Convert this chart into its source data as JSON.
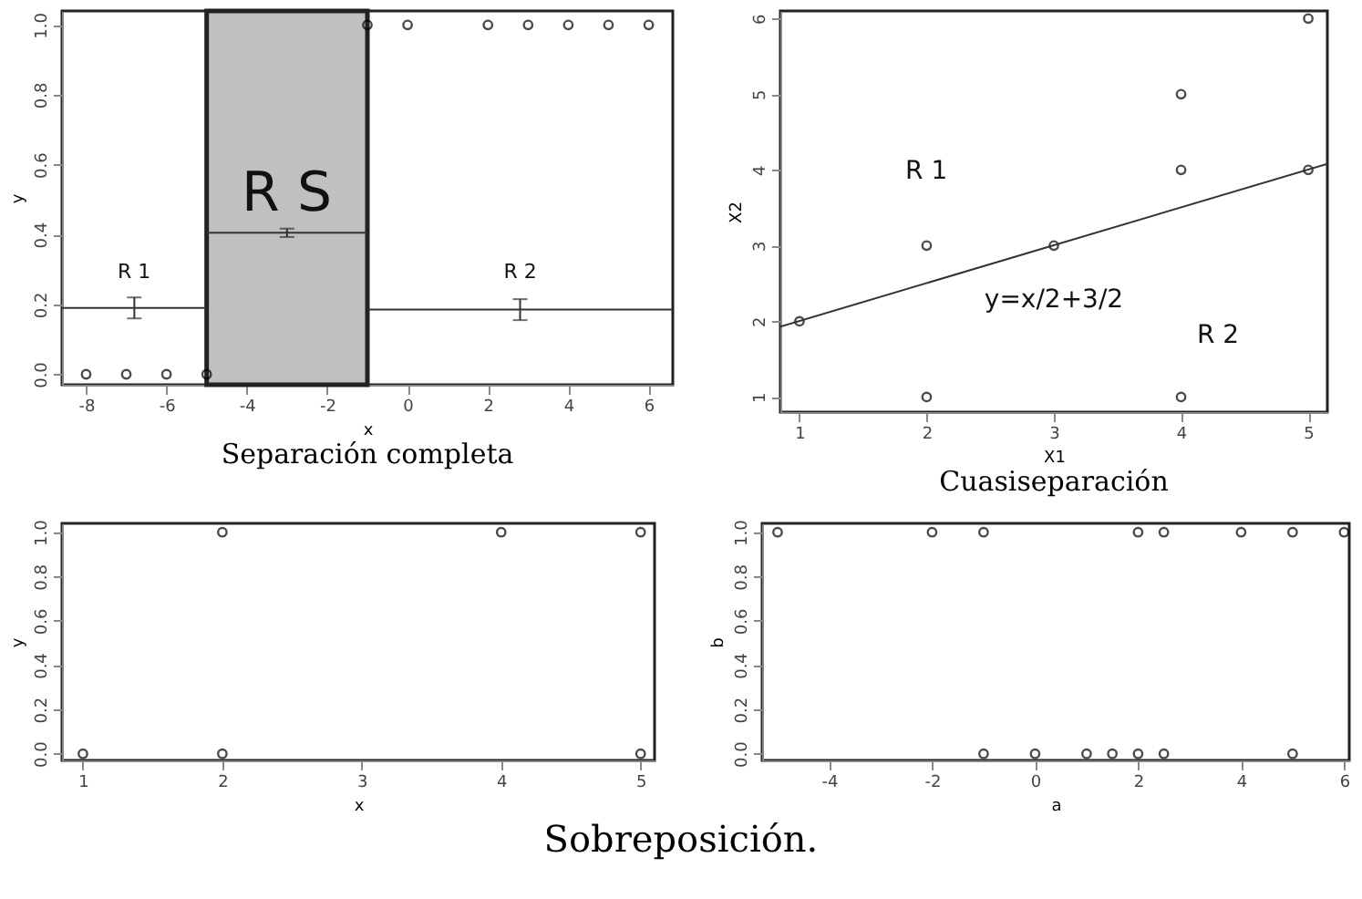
{
  "chart_data": [
    {
      "type": "scatter",
      "title": "Separación completa",
      "xlabel": "x",
      "ylabel": "y",
      "xlim": [
        -8.6,
        6.6
      ],
      "ylim": [
        -0.03,
        1.04
      ],
      "xticks": [
        -8,
        -6,
        -4,
        -2,
        0,
        2,
        4,
        6
      ],
      "yticks": [
        {
          "value": 0,
          "label": "0.0"
        },
        {
          "value": 0.2,
          "label": "0.2"
        },
        {
          "value": 0.4,
          "label": "0.4"
        },
        {
          "value": 0.6,
          "label": "0.6"
        },
        {
          "value": 0.8,
          "label": "0.8"
        },
        {
          "value": 1,
          "label": "1.0"
        }
      ],
      "bands": [
        {
          "axis": "x",
          "from": -5,
          "to": -1,
          "color": "#c0c0c0"
        }
      ],
      "series": [
        {
          "marker": "circle",
          "color": "#000000",
          "x": [
            -8,
            -7,
            -6,
            -5,
            -1,
            0,
            2,
            3,
            4,
            5,
            6
          ],
          "values": [
            0,
            0,
            0,
            0,
            1,
            1,
            1,
            1,
            1,
            1,
            1
          ]
        },
        {
          "type": "line",
          "marker": "none",
          "color": "#333333",
          "x": [
            -8.6,
            -6.8,
            -5
          ],
          "values": [
            0.19,
            0.19,
            0.19
          ],
          "errors": [
            null,
            0.03,
            null
          ]
        },
        {
          "type": "line",
          "marker": "none",
          "color": "#333333",
          "x": [
            -5,
            -3,
            -1
          ],
          "values": [
            0.405,
            0.405,
            0.405
          ],
          "errors": [
            null,
            0.012,
            null
          ]
        },
        {
          "type": "line",
          "marker": "none",
          "color": "#333333",
          "x": [
            -1,
            2.8,
            6.6
          ],
          "values": [
            0.185,
            0.185,
            0.185
          ],
          "errors": [
            null,
            0.03,
            null
          ]
        }
      ],
      "annotations": [
        "R 1",
        "R S",
        "R 2"
      ]
    },
    {
      "type": "scatter",
      "title": "Cuasiseparación",
      "xlabel": "X1",
      "ylabel": "X2",
      "xlim": [
        0.85,
        5.15
      ],
      "ylim": [
        0.8,
        6.1
      ],
      "xticks": [
        1,
        2,
        3,
        4,
        5
      ],
      "yticks": [
        1,
        2,
        3,
        4,
        5,
        6
      ],
      "series": [
        {
          "marker": "circle",
          "color": "#000000",
          "x": [
            1,
            2,
            2,
            3,
            4,
            4,
            4,
            5,
            5
          ],
          "values": [
            2,
            1,
            3,
            3,
            1,
            4,
            5,
            4,
            6
          ]
        },
        {
          "type": "line",
          "marker": "none",
          "color": "#333333",
          "x": [
            0.85,
            5.15
          ],
          "values": [
            1.93,
            4.08
          ]
        }
      ],
      "annotations": [
        "R 1",
        "y=x/2+3/2",
        "R 2"
      ]
    },
    {
      "type": "scatter",
      "xlabel": "x",
      "ylabel": "y",
      "xlim": [
        0.85,
        5.1
      ],
      "ylim": [
        -0.03,
        1.04
      ],
      "xticks": [
        1,
        2,
        3,
        4,
        5
      ],
      "yticks": [
        {
          "value": 0,
          "label": "0.0"
        },
        {
          "value": 0.2,
          "label": "0.2"
        },
        {
          "value": 0.4,
          "label": "0.4"
        },
        {
          "value": 0.6,
          "label": "0.6"
        },
        {
          "value": 0.8,
          "label": "0.8"
        },
        {
          "value": 1,
          "label": "1.0"
        }
      ],
      "series": [
        {
          "marker": "circle",
          "color": "#000000",
          "x": [
            1,
            2,
            2,
            4,
            5,
            5
          ],
          "values": [
            0,
            0,
            1,
            1,
            1,
            0
          ]
        }
      ]
    },
    {
      "type": "scatter",
      "title": "Sobreposición.",
      "xlabel": "a",
      "ylabel": "b",
      "xlim": [
        -5.3,
        6.1
      ],
      "ylim": [
        -0.03,
        1.04
      ],
      "xticks": [
        -4,
        -2,
        0,
        2,
        4,
        6
      ],
      "yticks": [
        {
          "value": 0,
          "label": "0.0"
        },
        {
          "value": 0.2,
          "label": "0.2"
        },
        {
          "value": 0.4,
          "label": "0.4"
        },
        {
          "value": 0.6,
          "label": "0.6"
        },
        {
          "value": 0.8,
          "label": "0.8"
        },
        {
          "value": 1,
          "label": "1.0"
        }
      ],
      "series": [
        {
          "marker": "circle",
          "color": "#000000",
          "x": [
            -5,
            -2,
            -1,
            2,
            2.5,
            4,
            5,
            6,
            -1,
            0,
            1,
            1.5,
            2,
            2.5,
            5
          ],
          "values": [
            1,
            1,
            1,
            1,
            1,
            1,
            1,
            1,
            0,
            0,
            0,
            0,
            0,
            0,
            0
          ]
        }
      ]
    }
  ]
}
